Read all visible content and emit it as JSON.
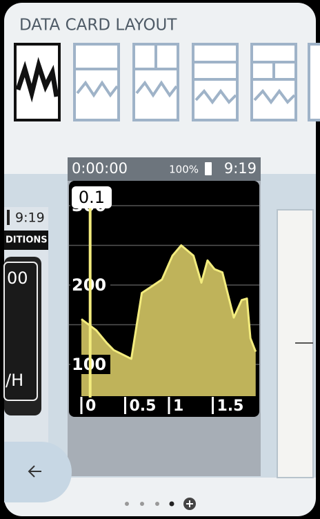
{
  "header": {
    "title": "DATA CARD LAYOUT"
  },
  "left_card": {
    "clock": "9:19",
    "label": "DITIONS",
    "value": "00",
    "unit": "/H"
  },
  "card": {
    "timer": "0:00:00",
    "battery": "100%",
    "clock": "9:19"
  },
  "chart_data": {
    "type": "area",
    "x": [
      0,
      0.17,
      0.29,
      0.37,
      0.57,
      0.69,
      0.8,
      0.92,
      1.04,
      1.14,
      1.28,
      1.37,
      1.44,
      1.52,
      1.61,
      1.74,
      1.83,
      1.89,
      1.93,
      1.99
    ],
    "values": [
      157,
      143,
      127,
      118,
      107,
      190,
      198,
      207,
      237,
      250,
      237,
      203,
      231,
      220,
      216,
      159,
      181,
      183,
      133,
      116
    ],
    "xlim": [
      0,
      2
    ],
    "ylim": [
      60,
      330
    ],
    "yticks": [
      100,
      200,
      300
    ],
    "minor_yticks": [
      150,
      250
    ],
    "xticks": [
      0,
      0.5,
      1,
      1.5
    ],
    "cursor": 0.1,
    "color": "#bfb35a",
    "line_color": "#f3ec7e"
  }
}
